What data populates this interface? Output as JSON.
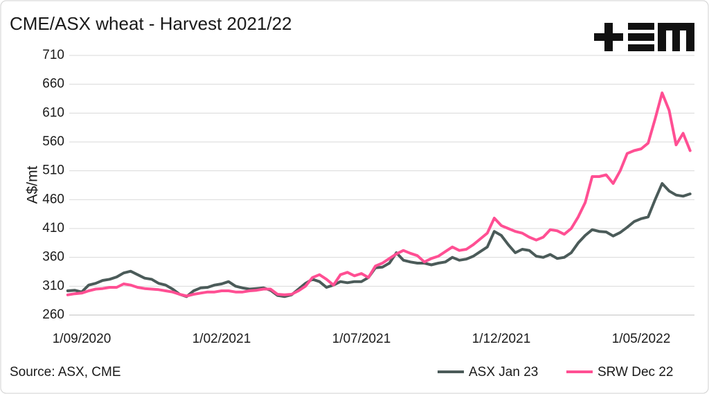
{
  "chart_data": {
    "type": "line",
    "title": "CME/ASX wheat - Harvest 2021/22",
    "y_label": "A$/mt",
    "source": "Source: ASX, CME",
    "ylim": [
      260,
      710
    ],
    "yticks": [
      260,
      310,
      360,
      410,
      460,
      510,
      560,
      610,
      660,
      710
    ],
    "grid": true,
    "legend": "bottom-right",
    "categories": [
      null,
      null,
      "1/09/2020",
      null,
      null,
      null,
      null,
      null,
      null,
      null,
      null,
      null,
      null,
      null,
      null,
      null,
      null,
      null,
      null,
      null,
      null,
      null,
      "1/02/2021",
      null,
      null,
      null,
      null,
      null,
      null,
      null,
      null,
      null,
      null,
      null,
      null,
      null,
      null,
      null,
      null,
      null,
      null,
      null,
      "1/07/2021",
      null,
      null,
      null,
      null,
      null,
      null,
      null,
      null,
      null,
      null,
      null,
      null,
      null,
      null,
      null,
      null,
      null,
      null,
      null,
      "1/12/2021",
      null,
      null,
      null,
      null,
      null,
      null,
      null,
      null,
      null,
      null,
      null,
      null,
      null,
      null,
      null,
      null,
      null,
      null,
      null,
      "1/05/2022",
      null,
      null,
      null,
      null,
      null,
      null,
      null
    ],
    "series": [
      {
        "name": "ASX Jan 23",
        "color": "#4b5b59",
        "values": [
          302,
          303,
          300,
          312,
          315,
          320,
          322,
          326,
          333,
          336,
          330,
          324,
          322,
          315,
          312,
          305,
          296,
          292,
          302,
          307,
          308,
          312,
          314,
          318,
          310,
          307,
          305,
          306,
          307,
          303,
          294,
          292,
          295,
          305,
          315,
          322,
          318,
          308,
          312,
          318,
          316,
          318,
          318,
          325,
          342,
          343,
          350,
          368,
          355,
          352,
          350,
          350,
          347,
          350,
          352,
          360,
          355,
          357,
          362,
          370,
          378,
          405,
          398,
          382,
          368,
          374,
          372,
          362,
          360,
          365,
          358,
          360,
          368,
          385,
          398,
          408,
          405,
          404,
          397,
          403,
          412,
          422,
          427,
          430,
          460,
          488,
          475,
          468,
          466,
          470
        ]
      },
      {
        "name": "SRW Dec 22",
        "color": "#ff4f93",
        "values": [
          295,
          297,
          298,
          302,
          305,
          306,
          308,
          308,
          314,
          312,
          308,
          306,
          305,
          304,
          302,
          300,
          296,
          293,
          296,
          298,
          300,
          300,
          302,
          302,
          300,
          300,
          302,
          303,
          305,
          305,
          296,
          295,
          296,
          302,
          310,
          325,
          330,
          322,
          312,
          330,
          334,
          328,
          332,
          325,
          345,
          350,
          358,
          366,
          372,
          367,
          363,
          352,
          358,
          362,
          370,
          378,
          372,
          374,
          382,
          392,
          402,
          428,
          415,
          410,
          405,
          402,
          395,
          390,
          395,
          408,
          406,
          400,
          410,
          430,
          455,
          500,
          500,
          503,
          488,
          510,
          540,
          545,
          548,
          558,
          600,
          645,
          615,
          555,
          575,
          545
        ]
      }
    ]
  }
}
